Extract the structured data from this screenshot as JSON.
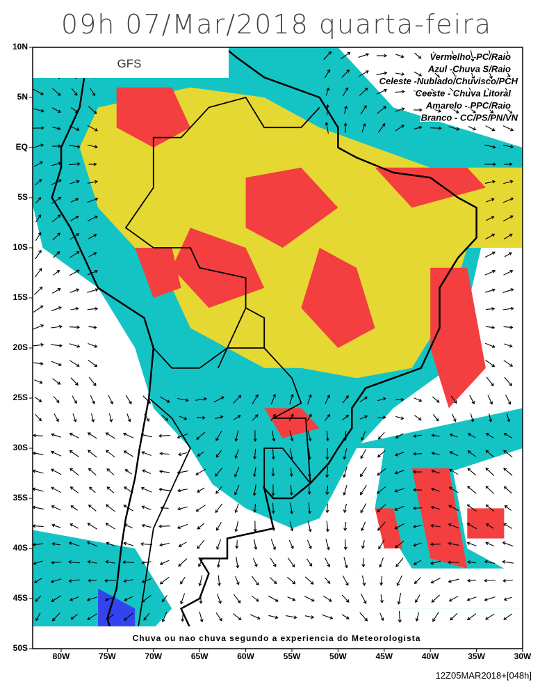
{
  "title": "09h 07/Mar/2018 quarta-feira",
  "model": "GFS",
  "legend": [
    "Vermelho -PC/Raio",
    "Azul -Chuva S/Raio",
    "Celeste -Nublado/Chuvisco/PCH",
    "Ceeste - Chuva Litoral",
    "Amarelo - PPC/Raio",
    "Branco - CC/PS/PN/VN"
  ],
  "lat_labels": [
    "10N",
    "5N",
    "EQ",
    "5S",
    "10S",
    "15S",
    "20S",
    "25S",
    "30S",
    "35S",
    "40S",
    "45S",
    "50S"
  ],
  "lon_labels": [
    "80W",
    "75W",
    "70W",
    "65W",
    "60W",
    "55W",
    "50W",
    "45W",
    "40W",
    "35W",
    "30W"
  ],
  "caption": "Chuva ou nao chuva segundo a experiencia do Meteorologista",
  "run": "12Z05MAR2018+[048h]"
}
